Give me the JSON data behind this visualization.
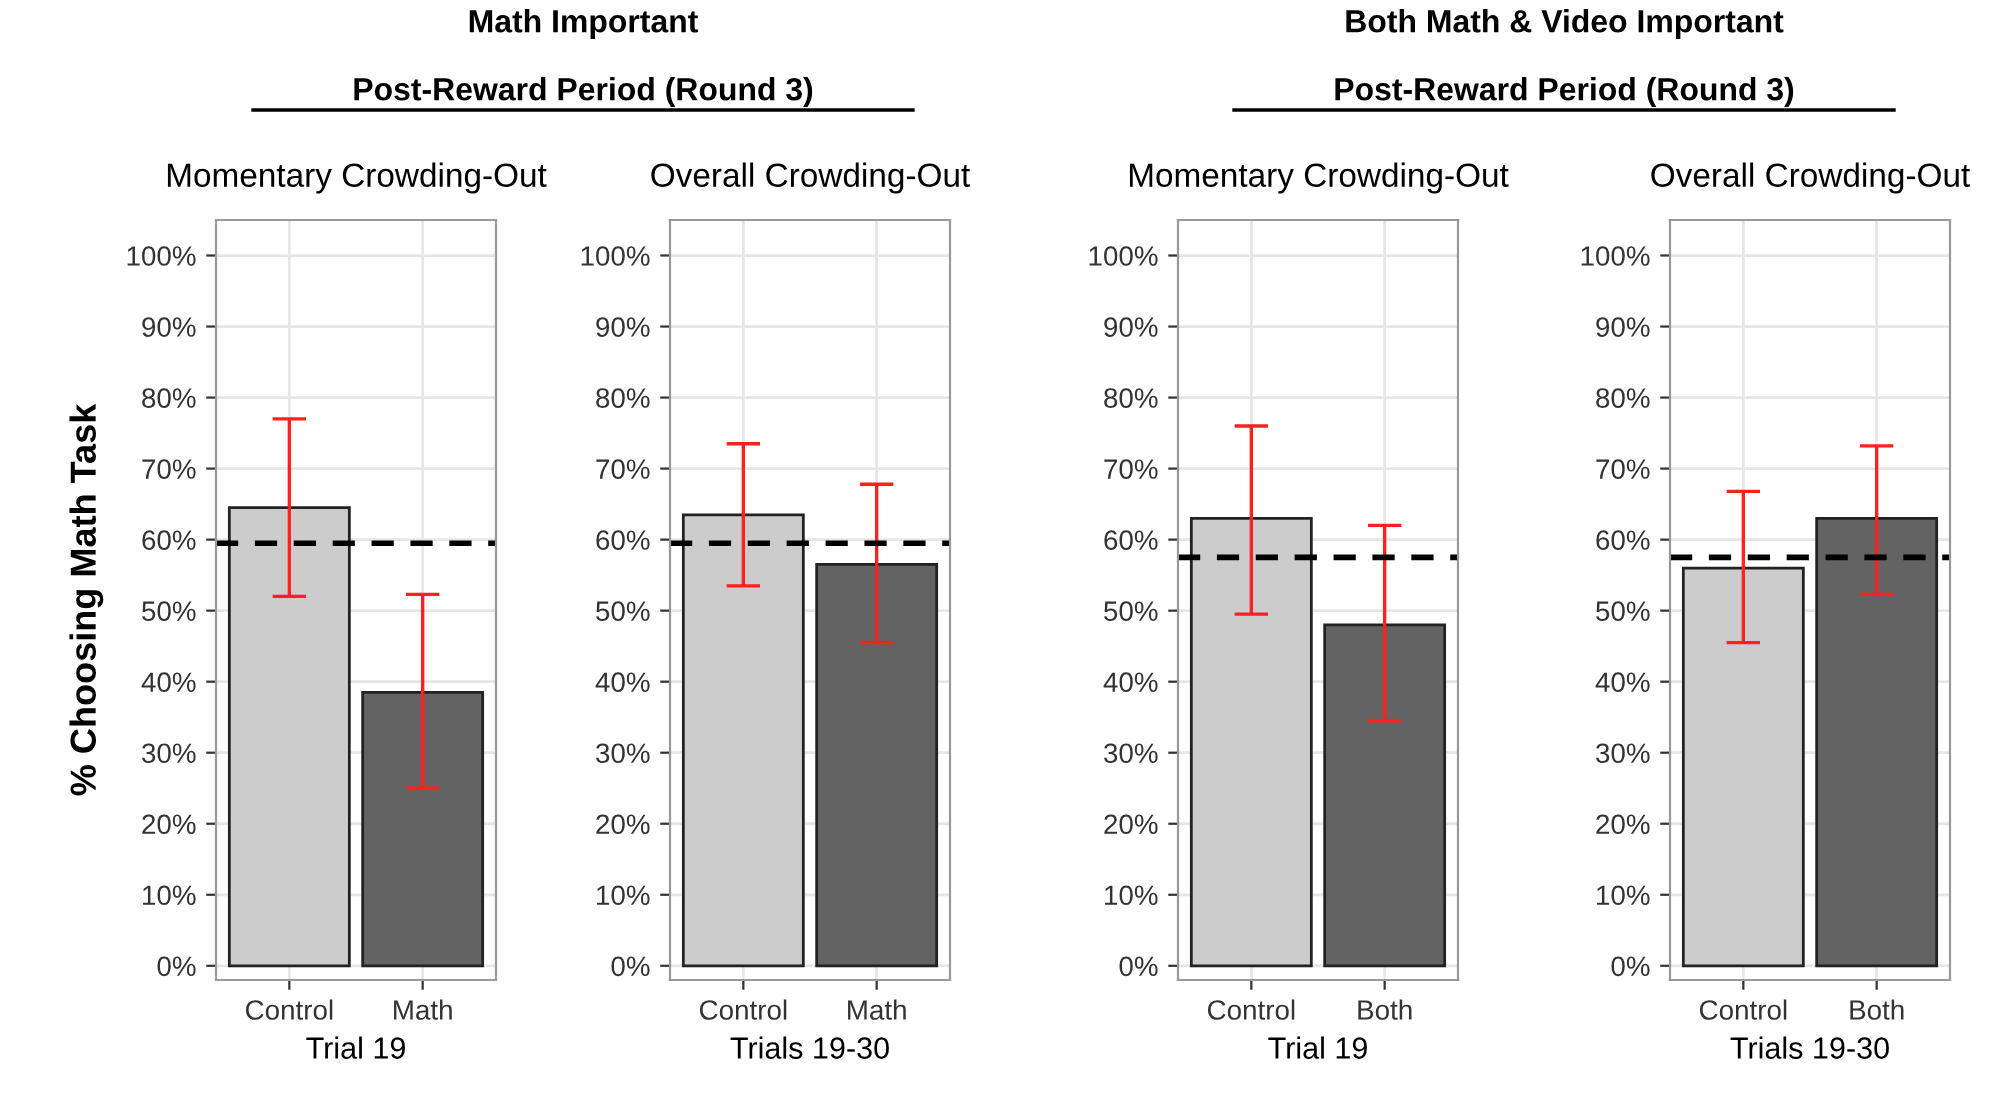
{
  "chart_data": [
    {
      "type": "bar",
      "title": "Momentary Crowding-Out",
      "xlabel": "Trial 19",
      "ylabel": "% Choosing Math Task",
      "annotations": [
        "Math Important",
        "Post-Reward Period (Round 3)"
      ],
      "categories": [
        "Control",
        "Math"
      ],
      "values": [
        64.5,
        38.5
      ],
      "colors": [
        "#cccccc",
        "#636363"
      ],
      "errors": [
        [
          52,
          77
        ],
        [
          25,
          52.3
        ]
      ],
      "ref_lines": [
        {
          "axis": "y",
          "value": 59.5,
          "color": "#000000",
          "line_style": "dashed"
        }
      ],
      "ylim": [
        -2,
        105
      ],
      "yticks": [
        {
          "value": 0,
          "label": "0%"
        },
        {
          "value": 10,
          "label": "10%"
        },
        {
          "value": 20,
          "label": "20%"
        },
        {
          "value": 30,
          "label": "30%"
        },
        {
          "value": 40,
          "label": "40%"
        },
        {
          "value": 50,
          "label": "50%"
        },
        {
          "value": 60,
          "label": "60%"
        },
        {
          "value": 70,
          "label": "70%"
        },
        {
          "value": 80,
          "label": "80%"
        },
        {
          "value": 90,
          "label": "90%"
        },
        {
          "value": 100,
          "label": "100%"
        }
      ],
      "grid": true
    },
    {
      "type": "bar",
      "title": "Overall Crowding-Out",
      "xlabel": "Trials 19-30",
      "categories": [
        "Control",
        "Math"
      ],
      "values": [
        63.5,
        56.5
      ],
      "colors": [
        "#cccccc",
        "#636363"
      ],
      "errors": [
        [
          53.5,
          73.5
        ],
        [
          45.5,
          67.8
        ]
      ],
      "ref_lines": [
        {
          "axis": "y",
          "value": 59.5,
          "color": "#000000",
          "line_style": "dashed"
        }
      ],
      "ylim": [
        -2,
        105
      ],
      "yticks": [
        {
          "value": 0,
          "label": "0%"
        },
        {
          "value": 10,
          "label": "10%"
        },
        {
          "value": 20,
          "label": "20%"
        },
        {
          "value": 30,
          "label": "30%"
        },
        {
          "value": 40,
          "label": "40%"
        },
        {
          "value": 50,
          "label": "50%"
        },
        {
          "value": 60,
          "label": "60%"
        },
        {
          "value": 70,
          "label": "70%"
        },
        {
          "value": 80,
          "label": "80%"
        },
        {
          "value": 90,
          "label": "90%"
        },
        {
          "value": 100,
          "label": "100%"
        }
      ],
      "grid": true
    },
    {
      "type": "bar",
      "title": "Momentary Crowding-Out",
      "xlabel": "Trial 19",
      "annotations": [
        "Both Math & Video Important",
        "Post-Reward Period (Round 3)"
      ],
      "categories": [
        "Control",
        "Both"
      ],
      "values": [
        63,
        48
      ],
      "colors": [
        "#cccccc",
        "#636363"
      ],
      "errors": [
        [
          49.5,
          76
        ],
        [
          34.5,
          62
        ]
      ],
      "ref_lines": [
        {
          "axis": "y",
          "value": 57.5,
          "color": "#000000",
          "line_style": "dashed"
        }
      ],
      "ylim": [
        -2,
        105
      ],
      "yticks": [
        {
          "value": 0,
          "label": "0%"
        },
        {
          "value": 10,
          "label": "10%"
        },
        {
          "value": 20,
          "label": "20%"
        },
        {
          "value": 30,
          "label": "30%"
        },
        {
          "value": 40,
          "label": "40%"
        },
        {
          "value": 50,
          "label": "50%"
        },
        {
          "value": 60,
          "label": "60%"
        },
        {
          "value": 70,
          "label": "70%"
        },
        {
          "value": 80,
          "label": "80%"
        },
        {
          "value": 90,
          "label": "90%"
        },
        {
          "value": 100,
          "label": "100%"
        }
      ],
      "grid": true
    },
    {
      "type": "bar",
      "title": "Overall Crowding-Out",
      "xlabel": "Trials 19-30",
      "categories": [
        "Control",
        "Both"
      ],
      "values": [
        56,
        63
      ],
      "colors": [
        "#cccccc",
        "#636363"
      ],
      "errors": [
        [
          45.5,
          66.8
        ],
        [
          52.3,
          73.2
        ]
      ],
      "ref_lines": [
        {
          "axis": "y",
          "value": 57.5,
          "color": "#000000",
          "line_style": "dashed"
        }
      ],
      "ylim": [
        -2,
        105
      ],
      "yticks": [
        {
          "value": 0,
          "label": "0%"
        },
        {
          "value": 10,
          "label": "10%"
        },
        {
          "value": 20,
          "label": "20%"
        },
        {
          "value": 30,
          "label": "30%"
        },
        {
          "value": 40,
          "label": "40%"
        },
        {
          "value": 50,
          "label": "50%"
        },
        {
          "value": 60,
          "label": "60%"
        },
        {
          "value": 70,
          "label": "70%"
        },
        {
          "value": 80,
          "label": "80%"
        },
        {
          "value": 90,
          "label": "90%"
        },
        {
          "value": 100,
          "label": "100%"
        }
      ],
      "grid": true
    }
  ]
}
